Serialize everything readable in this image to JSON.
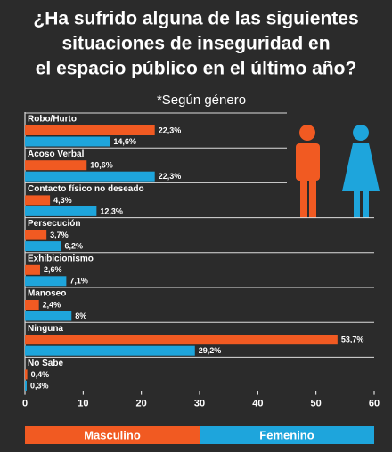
{
  "chart_data": {
    "type": "hbar",
    "title": [
      "¿Ha sufrido alguna de las siguientes",
      "situaciones de inseguridad en",
      "el espacio público en el último año?"
    ],
    "subtitle": "*Según género",
    "categories": [
      "Robo/Hurto",
      "Acoso Verbal",
      "Contacto físico no deseado",
      "Persecución",
      "Exhibicionismo",
      "Manoseo",
      "Ninguna",
      "No Sabe"
    ],
    "series": [
      {
        "name": "Masculino",
        "color": "#f15a22",
        "values": [
          22.3,
          10.6,
          4.3,
          3.7,
          2.6,
          2.4,
          53.7,
          0.4
        ],
        "value_labels": [
          "22,3%",
          "10,6%",
          "4,3%",
          "3,7%",
          "2,6%",
          "2,4%",
          "53,7%",
          "0,4%"
        ]
      },
      {
        "name": "Femenino",
        "color": "#1ea5dc",
        "values": [
          14.6,
          22.3,
          12.3,
          6.2,
          7.1,
          8,
          29.2,
          0.3
        ],
        "value_labels": [
          "14,6%",
          "22,3%",
          "12,3%",
          "6,2%",
          "7,1%",
          "8%",
          "29,2%",
          "0,3%"
        ]
      }
    ],
    "xlim": [
      0,
      60
    ],
    "xticks": [
      0,
      10,
      20,
      30,
      40,
      50,
      60
    ],
    "grid": false
  }
}
